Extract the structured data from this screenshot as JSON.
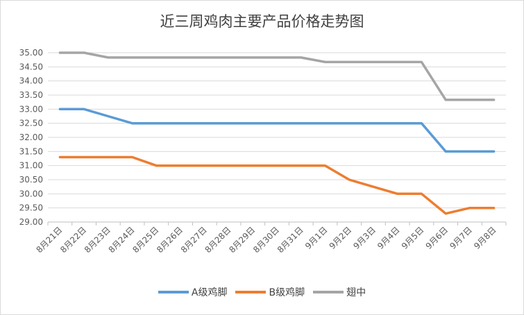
{
  "chart_data": {
    "type": "line",
    "title": "近三周鸡肉主要产品价格走势图",
    "xlabel": "",
    "ylabel": "",
    "ylim": [
      29.0,
      35.0
    ],
    "ytick_step": 0.5,
    "ytick_labels": [
      "29.00",
      "29.50",
      "30.00",
      "30.50",
      "31.00",
      "31.50",
      "32.00",
      "32.50",
      "33.00",
      "33.50",
      "34.00",
      "34.50",
      "35.00"
    ],
    "categories": [
      "8月21日",
      "8月22日",
      "8月23日",
      "8月24日",
      "8月25日",
      "8月26日",
      "8月27日",
      "8月28日",
      "8月29日",
      "8月30日",
      "8月31日",
      "9月1日",
      "9月2日",
      "9月3日",
      "9月4日",
      "9月5日",
      "9月6日",
      "9月7日",
      "9月8日"
    ],
    "grid": true,
    "legend_position": "bottom",
    "series": [
      {
        "name": "A级鸡脚",
        "color": "#5b9bd5",
        "values": [
          33.0,
          33.0,
          32.75,
          32.5,
          32.5,
          32.5,
          32.5,
          32.5,
          32.5,
          32.5,
          32.5,
          32.5,
          32.5,
          32.5,
          32.5,
          32.5,
          31.5,
          31.5,
          31.5
        ]
      },
      {
        "name": "B级鸡脚",
        "color": "#ed7d31",
        "values": [
          31.3,
          31.3,
          31.3,
          31.3,
          31.0,
          31.0,
          31.0,
          31.0,
          31.0,
          31.0,
          31.0,
          31.0,
          30.5,
          30.25,
          30.0,
          30.0,
          29.3,
          29.5,
          29.5
        ]
      },
      {
        "name": "翅中",
        "color": "#a5a5a5",
        "values": [
          35.0,
          35.0,
          34.83,
          34.83,
          34.83,
          34.83,
          34.83,
          34.83,
          34.83,
          34.83,
          34.83,
          34.67,
          34.67,
          34.67,
          34.67,
          34.67,
          33.33,
          33.33,
          33.33
        ]
      }
    ]
  }
}
